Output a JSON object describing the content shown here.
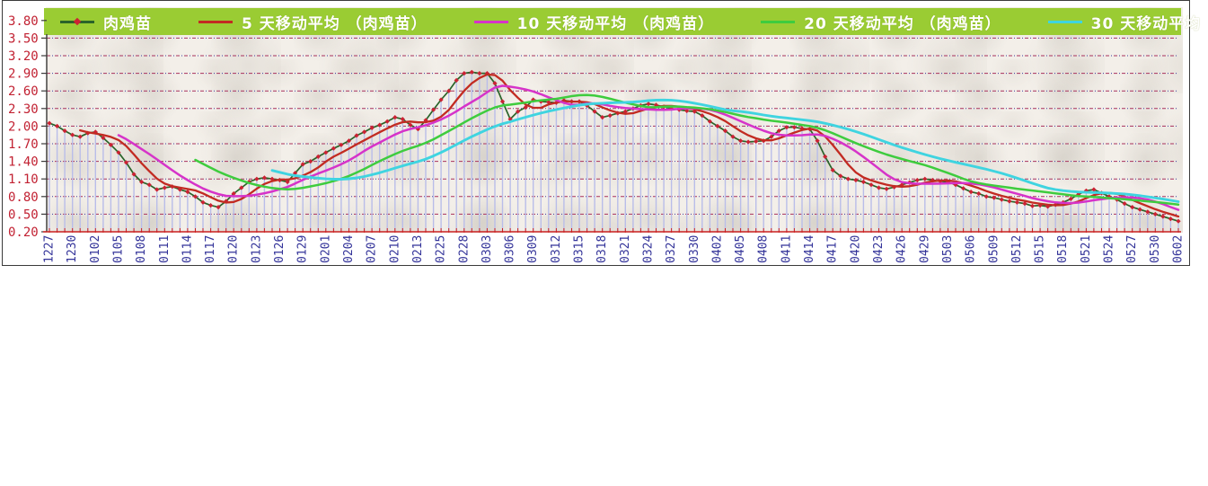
{
  "chart_data": {
    "type": "line",
    "legend_position": "top",
    "grid": true,
    "colors": {
      "legend_background": "#9acc33",
      "legend_text": "#ffffff",
      "plot_background": "#f3efe9",
      "gridline_red": "#a8305c",
      "gridline_navy": "#3a3aa0",
      "drop_line": "#b9bde9",
      "x_axis_line": "#cc2222",
      "left_axis_line": "#3a3a3a",
      "marker": "#cc2233"
    },
    "y_axis": {
      "tick_labels": [
        "3.80",
        "3.50",
        "3.20",
        "2.90",
        "2.60",
        "2.30",
        "2.00",
        "1.70",
        "1.40",
        "1.10",
        "0.80",
        "0.50",
        "0.20"
      ],
      "min": 0.2,
      "max": 3.8,
      "step": 0.3,
      "label_color": "#c22233"
    },
    "x_axis": {
      "tick_labels": [
        "1227",
        "1230",
        "0102",
        "0105",
        "0108",
        "0111",
        "0114",
        "0117",
        "0120",
        "0123",
        "0126",
        "0129",
        "0201",
        "0204",
        "0207",
        "0210",
        "0213",
        "0225",
        "0228",
        "0303",
        "0306",
        "0309",
        "0312",
        "0315",
        "0318",
        "0321",
        "0324",
        "0327",
        "0330",
        "0402",
        "0405",
        "0408",
        "0411",
        "0414",
        "0417",
        "0420",
        "0423",
        "0426",
        "0429",
        "0503",
        "0506",
        "0509",
        "0512",
        "0515",
        "0518",
        "0521",
        "0524",
        "0527",
        "0530",
        "0602"
      ],
      "points_per_label": 3,
      "label_color": "#333399",
      "label_rotation_deg": -90
    },
    "series": [
      {
        "name": "肉鸡苗",
        "color": "#2a642a",
        "marker": "diamond",
        "marker_color": "#cc2233",
        "drop_lines": true,
        "values": [
          2.05,
          2.0,
          1.92,
          1.85,
          1.82,
          1.88,
          1.9,
          1.8,
          1.68,
          1.55,
          1.38,
          1.18,
          1.05,
          1.0,
          0.92,
          0.95,
          0.97,
          0.92,
          0.88,
          0.8,
          0.7,
          0.65,
          0.62,
          0.72,
          0.85,
          0.95,
          1.05,
          1.1,
          1.12,
          1.1,
          1.08,
          1.05,
          1.2,
          1.35,
          1.4,
          1.48,
          1.55,
          1.62,
          1.68,
          1.75,
          1.84,
          1.9,
          1.97,
          2.02,
          2.08,
          2.15,
          2.12,
          2.02,
          1.95,
          2.1,
          2.28,
          2.45,
          2.6,
          2.78,
          2.9,
          2.92,
          2.9,
          2.9,
          2.73,
          2.42,
          2.12,
          2.25,
          2.32,
          2.45,
          2.42,
          2.41,
          2.4,
          2.44,
          2.42,
          2.42,
          2.35,
          2.25,
          2.15,
          2.18,
          2.22,
          2.25,
          2.3,
          2.35,
          2.38,
          2.36,
          2.33,
          2.3,
          2.28,
          2.26,
          2.25,
          2.18,
          2.08,
          2.0,
          1.92,
          1.82,
          1.75,
          1.73,
          1.74,
          1.75,
          1.82,
          1.92,
          1.98,
          1.98,
          1.96,
          1.95,
          1.75,
          1.48,
          1.25,
          1.15,
          1.1,
          1.08,
          1.05,
          1.0,
          0.95,
          0.93,
          0.96,
          1.0,
          1.04,
          1.08,
          1.1,
          1.08,
          1.06,
          1.05,
          1.0,
          0.94,
          0.88,
          0.85,
          0.8,
          0.78,
          0.75,
          0.72,
          0.7,
          0.68,
          0.64,
          0.65,
          0.63,
          0.66,
          0.7,
          0.76,
          0.84,
          0.9,
          0.92,
          0.86,
          0.8,
          0.75,
          0.68,
          0.62,
          0.58,
          0.54,
          0.5,
          0.46,
          0.42,
          0.38
        ]
      },
      {
        "name": "5 天移动平均 （肉鸡苗）",
        "color": "#c22b22",
        "derived": "moving_average",
        "window": 5
      },
      {
        "name": "10 天移动平均 （肉鸡苗）",
        "color": "#d633c9",
        "derived": "moving_average",
        "window": 10
      },
      {
        "name": "20 天移动平均 （肉鸡苗）",
        "color": "#3ecc3e",
        "derived": "moving_average",
        "window": 20
      },
      {
        "name": "30 天移动平均 （肉鸡苗）",
        "color": "#3fd4e0",
        "derived": "moving_average",
        "window": 30
      }
    ]
  }
}
